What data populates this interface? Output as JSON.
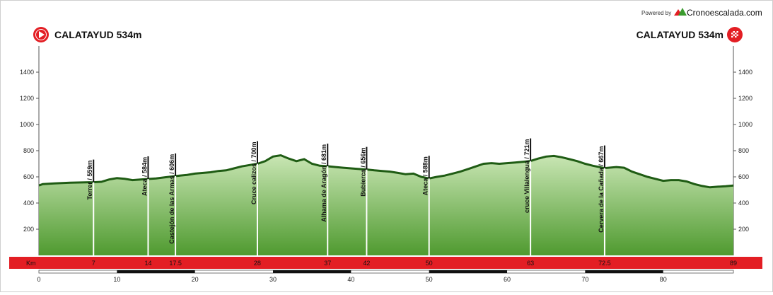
{
  "branding": {
    "powered_by": "Powered by",
    "name": "Cronoescalada.com",
    "logo_icon": "mountain-logo-icon"
  },
  "start": {
    "label": "CALATAYUD 534m",
    "icon": "start-play-icon",
    "color": "#e31e24"
  },
  "finish": {
    "label": "CALATAYUD 534m",
    "icon": "finish-flag-icon",
    "color": "#e31e24"
  },
  "chart_data": {
    "type": "area",
    "title": "",
    "xlabel": "",
    "ylabel": "",
    "xlim": [
      0,
      89
    ],
    "ylim": [
      0,
      1600
    ],
    "y_ticks": [
      200,
      400,
      600,
      800,
      1000,
      1200,
      1400
    ],
    "x_ticks": [
      0,
      10,
      20,
      30,
      40,
      50,
      60,
      70,
      80
    ],
    "km_label": "Km",
    "km_marks": [
      "7",
      "14",
      "17.5",
      "28",
      "37",
      "42",
      "50",
      "63",
      "72.5",
      "89"
    ],
    "colors": {
      "fill_top": "#c9e6b4",
      "fill_bottom": "#4f9a2f",
      "edge": "#1f5c14",
      "band": "#e31e24"
    },
    "profile": {
      "distance_km": [
        0,
        0.5,
        2,
        4,
        6,
        7,
        8,
        9,
        10,
        11,
        12,
        13,
        14,
        15,
        16,
        17.5,
        19,
        20,
        22,
        23,
        24,
        25,
        26,
        27,
        28,
        29,
        30,
        31,
        32,
        33,
        34,
        35,
        36,
        37,
        38,
        39,
        40,
        41,
        42,
        43,
        44,
        45,
        46,
        47,
        48,
        49,
        50,
        51,
        52,
        53,
        54,
        55,
        56,
        57,
        58,
        59,
        60,
        61,
        62,
        63,
        64,
        65,
        66,
        67,
        68,
        69,
        70,
        71,
        72.5,
        74,
        75,
        76,
        77,
        78,
        79,
        80,
        81,
        82,
        83,
        84,
        85,
        86,
        87,
        88,
        89
      ],
      "elevation_m": [
        534,
        545,
        550,
        555,
        558,
        559,
        562,
        580,
        590,
        585,
        575,
        580,
        584,
        588,
        595,
        606,
        615,
        625,
        635,
        645,
        650,
        665,
        680,
        690,
        700,
        720,
        755,
        765,
        740,
        720,
        735,
        700,
        685,
        681,
        675,
        670,
        665,
        660,
        656,
        650,
        645,
        640,
        630,
        620,
        625,
        600,
        588,
        600,
        610,
        625,
        640,
        660,
        680,
        700,
        705,
        700,
        705,
        710,
        715,
        721,
        740,
        755,
        760,
        750,
        735,
        720,
        700,
        685,
        667,
        675,
        670,
        640,
        620,
        600,
        585,
        570,
        575,
        575,
        565,
        545,
        530,
        520,
        525,
        528,
        534
      ]
    },
    "waypoints": [
      {
        "km": 7,
        "label": "Terrer / 559m",
        "elevation": 559
      },
      {
        "km": 14,
        "label": "Ateca / 584m",
        "elevation": 584
      },
      {
        "km": 17.5,
        "label": "Castejón de las Armas / 606m",
        "elevation": 606
      },
      {
        "km": 28,
        "label": "Cruce calizos / 700m",
        "elevation": 700
      },
      {
        "km": 37,
        "label": "Alhama de Aragón / 681m",
        "elevation": 681
      },
      {
        "km": 42,
        "label": "Bubierca / 656m",
        "elevation": 656
      },
      {
        "km": 50,
        "label": "Ateca / 588m",
        "elevation": 588
      },
      {
        "km": 63,
        "label": "cruce Villalengua / 721m",
        "elevation": 721
      },
      {
        "km": 72.5,
        "label": "Cervera de la Cañada / 667m",
        "elevation": 667
      }
    ]
  }
}
